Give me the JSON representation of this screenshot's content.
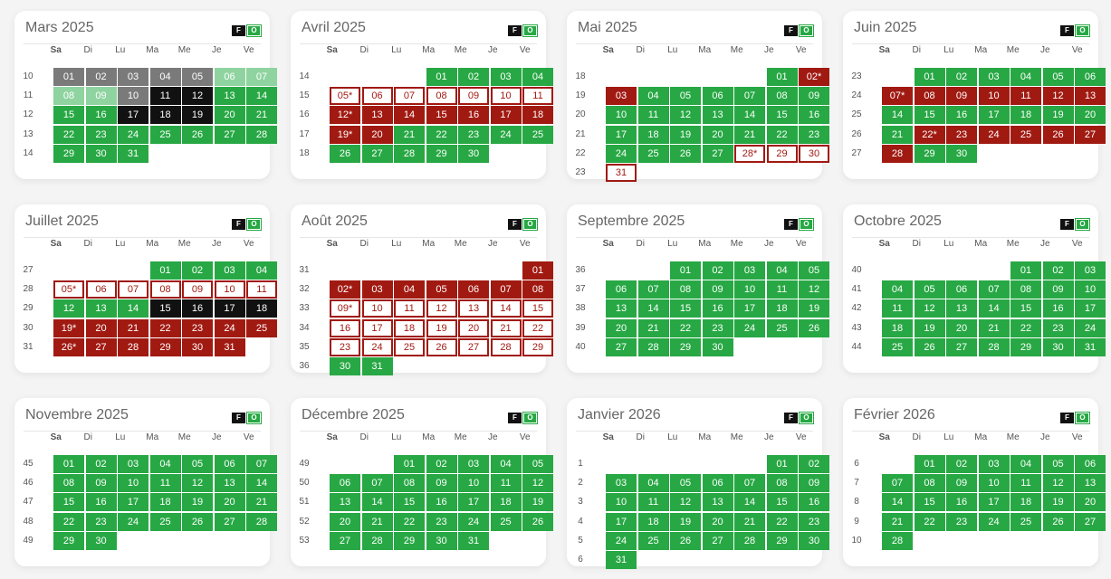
{
  "day_names": [
    "Sa",
    "Di",
    "Lu",
    "Ma",
    "Me",
    "Je",
    "Ve"
  ],
  "badges": {
    "f": "F",
    "o": "O"
  },
  "colors": {
    "green": "#27a844",
    "light_green": "#8fd4a0",
    "grey": "#7a7a7a",
    "black": "#111111",
    "red": "#a11a12",
    "red_outline": "#a11a12"
  },
  "months": [
    {
      "title": "Mars 2025",
      "start_col": 0,
      "first_week": 10,
      "days": 31,
      "styles": {
        "1": "gr",
        "2": "gr",
        "3": "gr",
        "4": "gr",
        "5": "gr",
        "6": "lg",
        "7": "lg",
        "8": "lg",
        "9": "lg",
        "10": "gr",
        "11": "k",
        "12": "k",
        "17": "k",
        "18": "k",
        "19": "k"
      }
    },
    {
      "title": "Avril 2025",
      "start_col": 3,
      "first_week": 14,
      "days": 30,
      "labels": {
        "5": "05*",
        "12": "12*",
        "19": "19*"
      },
      "styles": {
        "5": "ro",
        "6": "ro",
        "7": "ro",
        "8": "ro",
        "9": "ro",
        "10": "ro",
        "11": "ro",
        "12": "r",
        "13": "r",
        "14": "r",
        "15": "r",
        "16": "r",
        "17": "r",
        "18": "r",
        "19": "r",
        "20": "r"
      }
    },
    {
      "title": "Mai 2025",
      "start_col": 5,
      "first_week": 18,
      "days": 31,
      "labels": {
        "2": "02*",
        "28": "28*"
      },
      "styles": {
        "2": "r",
        "3": "r",
        "28": "ro",
        "29": "ro",
        "30": "ro",
        "31": "ro"
      }
    },
    {
      "title": "Juin 2025",
      "start_col": 1,
      "first_week": 23,
      "days": 30,
      "labels": {
        "7": "07*",
        "22": "22*"
      },
      "styles": {
        "7": "r",
        "8": "r",
        "9": "r",
        "10": "r",
        "11": "r",
        "12": "r",
        "13": "r",
        "22": "r",
        "23": "r",
        "24": "r",
        "25": "r",
        "26": "r",
        "27": "r",
        "28": "r"
      }
    },
    {
      "title": "Juillet 2025",
      "start_col": 3,
      "first_week": 27,
      "days": 31,
      "labels": {
        "5": "05*",
        "19": "19*",
        "26": "26*"
      },
      "styles": {
        "5": "ro",
        "6": "ro",
        "7": "ro",
        "8": "ro",
        "9": "ro",
        "10": "ro",
        "11": "ro",
        "15": "k",
        "16": "k",
        "17": "k",
        "18": "k",
        "19": "r",
        "20": "r",
        "21": "r",
        "22": "r",
        "23": "r",
        "24": "r",
        "25": "r",
        "26": "r",
        "27": "r",
        "28": "r",
        "29": "r",
        "30": "r",
        "31": "r"
      }
    },
    {
      "title": "Août 2025",
      "start_col": 6,
      "first_week": 31,
      "days": 31,
      "labels": {
        "2": "02*",
        "9": "09*"
      },
      "styles": {
        "1": "r",
        "2": "r",
        "3": "r",
        "4": "r",
        "5": "r",
        "6": "r",
        "7": "r",
        "8": "r",
        "9": "ro",
        "10": "ro",
        "11": "ro",
        "12": "ro",
        "13": "ro",
        "14": "ro",
        "15": "ro",
        "16": "ro",
        "17": "ro",
        "18": "ro",
        "19": "ro",
        "20": "ro",
        "21": "ro",
        "22": "ro",
        "23": "ro",
        "24": "ro",
        "25": "ro",
        "26": "ro",
        "27": "ro",
        "28": "ro",
        "29": "ro"
      }
    },
    {
      "title": "Septembre 2025",
      "start_col": 2,
      "first_week": 36,
      "days": 30,
      "styles": {}
    },
    {
      "title": "Octobre 2025",
      "start_col": 4,
      "first_week": 40,
      "days": 31,
      "styles": {}
    },
    {
      "title": "Novembre 2025",
      "start_col": 0,
      "first_week": 45,
      "days": 30,
      "styles": {}
    },
    {
      "title": "Décembre 2025",
      "start_col": 2,
      "first_week": 49,
      "days": 31,
      "styles": {}
    },
    {
      "title": "Janvier 2026",
      "start_col": 5,
      "first_week": 1,
      "days": 31,
      "styles": {}
    },
    {
      "title": "Février 2026",
      "start_col": 1,
      "first_week": 6,
      "days": 28,
      "styles": {}
    }
  ]
}
